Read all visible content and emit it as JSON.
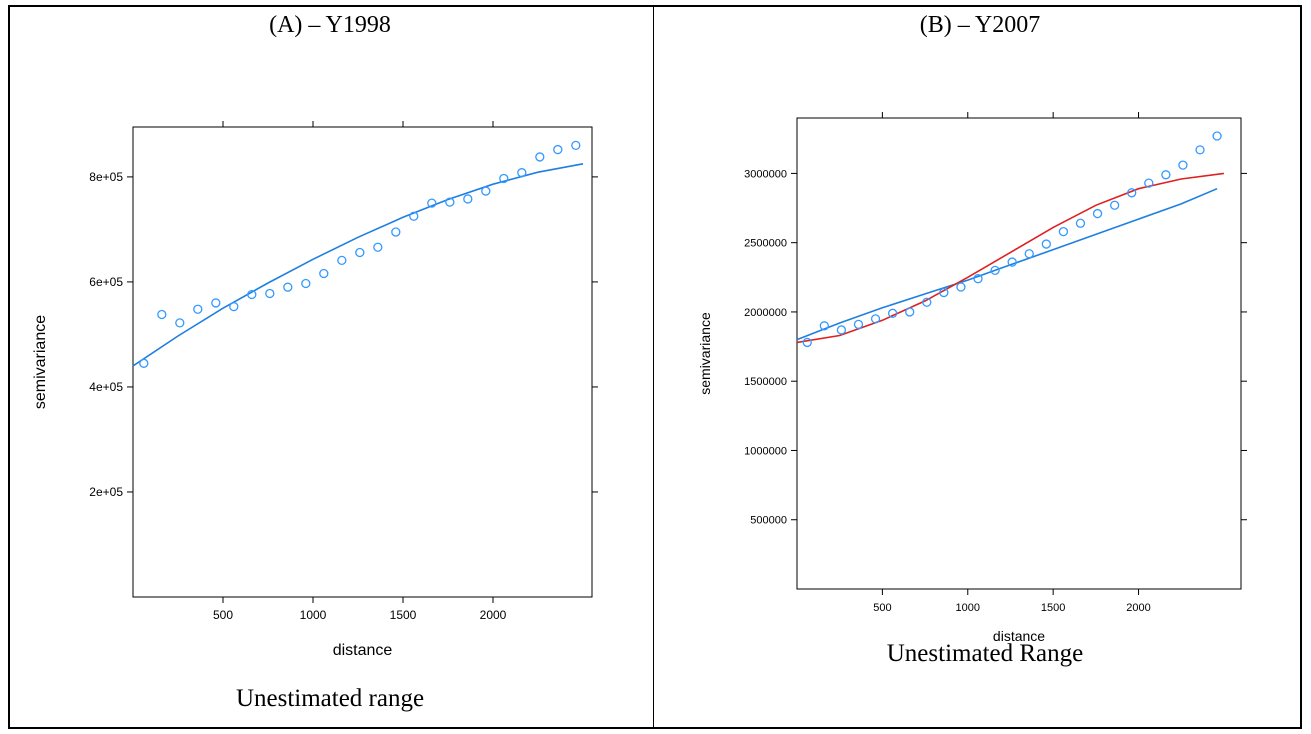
{
  "panels": [
    {
      "title": "(A) – Y1998",
      "caption": "Unestimated range"
    },
    {
      "title": "(B) – Y2007",
      "caption": "Unestimated Range"
    }
  ],
  "chart_data": [
    {
      "type": "scatter",
      "xlabel": "distance",
      "ylabel": "semivariance",
      "xlim": [
        0,
        2550
      ],
      "ylim": [
        0,
        895000
      ],
      "x_ticks": [
        500,
        1000,
        1500,
        2000
      ],
      "x_tick_labels": [
        "500",
        "1000",
        "1500",
        "2000"
      ],
      "y_ticks": [
        200000,
        400000,
        600000,
        800000
      ],
      "y_tick_labels": [
        "2e+05",
        "4e+05",
        "6e+05",
        "8e+05"
      ],
      "points_color": "#3399ff",
      "points": [
        [
          60,
          445000
        ],
        [
          160,
          538000
        ],
        [
          260,
          522000
        ],
        [
          360,
          548000
        ],
        [
          460,
          560000
        ],
        [
          560,
          553000
        ],
        [
          660,
          576000
        ],
        [
          760,
          578000
        ],
        [
          860,
          590000
        ],
        [
          960,
          597000
        ],
        [
          1060,
          616000
        ],
        [
          1160,
          641000
        ],
        [
          1260,
          656000
        ],
        [
          1360,
          666000
        ],
        [
          1460,
          695000
        ],
        [
          1560,
          725000
        ],
        [
          1660,
          750000
        ],
        [
          1760,
          752000
        ],
        [
          1860,
          758000
        ],
        [
          1960,
          773000
        ],
        [
          2060,
          797000
        ],
        [
          2160,
          808000
        ],
        [
          2260,
          838000
        ],
        [
          2360,
          852000
        ],
        [
          2460,
          860000
        ]
      ],
      "series": [
        {
          "color": "#1f7fe0",
          "x": [
            0,
            250,
            500,
            750,
            1000,
            1250,
            1500,
            1750,
            2000,
            2250,
            2500
          ],
          "y": [
            440000,
            497000,
            550000,
            598000,
            643000,
            685000,
            723000,
            757000,
            786000,
            809000,
            825000
          ]
        }
      ]
    },
    {
      "type": "scatter",
      "xlabel": "distance",
      "ylabel": "semivariance",
      "xlim": [
        0,
        2600
      ],
      "ylim": [
        0,
        3400000
      ],
      "x_ticks": [
        500,
        1000,
        1500,
        2000
      ],
      "x_tick_labels": [
        "500",
        "1000",
        "1500",
        "2000"
      ],
      "y_ticks": [
        500000,
        1000000,
        1500000,
        2000000,
        2500000,
        3000000
      ],
      "y_tick_labels": [
        "500000",
        "1000000",
        "1500000",
        "2000000",
        "2500000",
        "3000000"
      ],
      "points_color": "#3399ff",
      "points": [
        [
          60,
          1780000
        ],
        [
          160,
          1900000
        ],
        [
          260,
          1870000
        ],
        [
          360,
          1910000
        ],
        [
          460,
          1950000
        ],
        [
          560,
          1990000
        ],
        [
          660,
          2000000
        ],
        [
          760,
          2070000
        ],
        [
          860,
          2140000
        ],
        [
          960,
          2180000
        ],
        [
          1060,
          2240000
        ],
        [
          1160,
          2300000
        ],
        [
          1260,
          2360000
        ],
        [
          1360,
          2420000
        ],
        [
          1460,
          2490000
        ],
        [
          1560,
          2580000
        ],
        [
          1660,
          2640000
        ],
        [
          1760,
          2710000
        ],
        [
          1860,
          2770000
        ],
        [
          1960,
          2860000
        ],
        [
          2060,
          2930000
        ],
        [
          2160,
          2990000
        ],
        [
          2260,
          3060000
        ],
        [
          2360,
          3170000
        ],
        [
          2460,
          3270000
        ]
      ],
      "series": [
        {
          "color": "#1f7fe0",
          "x": [
            0,
            250,
            500,
            750,
            1000,
            1250,
            1500,
            1750,
            2000,
            2250,
            2460
          ],
          "y": [
            1800000,
            1920000,
            2030000,
            2130000,
            2230000,
            2340000,
            2450000,
            2560000,
            2670000,
            2780000,
            2890000
          ]
        },
        {
          "color": "#e02020",
          "x": [
            0,
            250,
            500,
            750,
            1000,
            1250,
            1500,
            1750,
            2000,
            2250,
            2500
          ],
          "y": [
            1780000,
            1830000,
            1940000,
            2080000,
            2250000,
            2430000,
            2610000,
            2770000,
            2890000,
            2960000,
            3000000
          ]
        }
      ]
    }
  ]
}
